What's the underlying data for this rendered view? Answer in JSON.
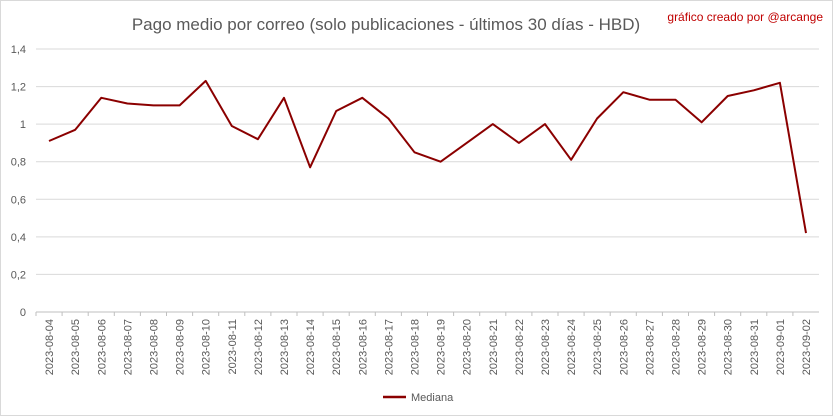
{
  "chart_data": {
    "type": "line",
    "title": "Pago medio por correo (solo publicaciones - últimos 30 días - HBD)",
    "credit": "gráfico creado por @arcange",
    "xlabel": "",
    "ylabel": "",
    "ylim": [
      0,
      1.4
    ],
    "yticks": [
      "0",
      "0,2",
      "0,4",
      "0,6",
      "0,8",
      "1",
      "1,2",
      "1,4"
    ],
    "grid": true,
    "legend_position": "bottom",
    "categories": [
      "2023-08-04",
      "2023-08-05",
      "2023-08-06",
      "2023-08-07",
      "2023-08-08",
      "2023-08-09",
      "2023-08-10",
      "2023-08-11",
      "2023-08-12",
      "2023-08-13",
      "2023-08-14",
      "2023-08-15",
      "2023-08-16",
      "2023-08-17",
      "2023-08-18",
      "2023-08-19",
      "2023-08-20",
      "2023-08-21",
      "2023-08-22",
      "2023-08-23",
      "2023-08-24",
      "2023-08-25",
      "2023-08-26",
      "2023-08-27",
      "2023-08-28",
      "2023-08-29",
      "2023-08-30",
      "2023-08-31",
      "2023-09-01",
      "2023-09-02"
    ],
    "series": [
      {
        "name": "Mediana",
        "color": "#8b0000",
        "values": [
          0.91,
          0.97,
          1.14,
          1.11,
          1.1,
          1.1,
          1.23,
          0.99,
          0.92,
          1.14,
          0.77,
          1.07,
          1.14,
          1.03,
          0.85,
          0.8,
          0.9,
          1.0,
          0.9,
          1.0,
          0.81,
          1.03,
          1.17,
          1.13,
          1.13,
          1.01,
          1.15,
          1.18,
          1.22,
          0.42
        ]
      }
    ]
  }
}
